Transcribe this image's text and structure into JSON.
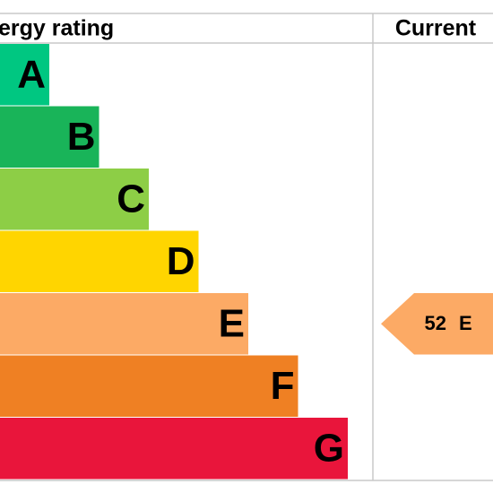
{
  "header": {
    "title": "ergy rating",
    "current": "Current"
  },
  "bands": [
    {
      "letter": "A",
      "color": "#00c781"
    },
    {
      "letter": "B",
      "color": "#19b459"
    },
    {
      "letter": "C",
      "color": "#8dce46"
    },
    {
      "letter": "D",
      "color": "#ffd500"
    },
    {
      "letter": "E",
      "color": "#fcaa65"
    },
    {
      "letter": "F",
      "color": "#ef8023"
    },
    {
      "letter": "G",
      "color": "#e9153b"
    }
  ],
  "current": {
    "value": 52,
    "band": "E"
  }
}
